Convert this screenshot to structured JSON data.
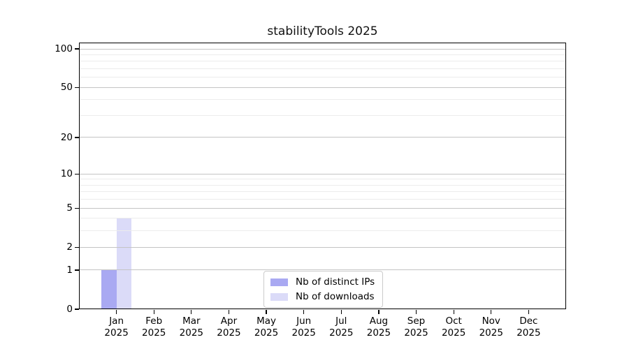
{
  "title": "stabilityTools 2025",
  "colors": {
    "distinct_ips_bar": "#a9a9f2",
    "downloads_bar": "#dbdbf8",
    "major_gridline": "#c4c4c4",
    "minor_gridline": "#ececec",
    "axis": "#000000",
    "legend_border": "#cbcbcb",
    "background": "#ffffff"
  },
  "chart_data": {
    "type": "bar",
    "title": "stabilityTools 2025",
    "yscale": "log1p",
    "grid": true,
    "categories": [
      "Jan",
      "Feb",
      "Mar",
      "Apr",
      "May",
      "Jun",
      "Jul",
      "Aug",
      "Sep",
      "Oct",
      "Nov",
      "Dec"
    ],
    "x_tick_year": "2025",
    "series": [
      {
        "name": "Nb of distinct IPs",
        "color": "#a9a9f2",
        "values": [
          1,
          0,
          0,
          0,
          0,
          0,
          0,
          0,
          0,
          0,
          0,
          0
        ]
      },
      {
        "name": "Nb of downloads",
        "color": "#dbdbf8",
        "values": [
          4,
          0,
          0,
          0,
          0,
          0,
          0,
          0,
          0,
          0,
          0,
          0
        ]
      }
    ],
    "y_major_ticks": [
      0,
      1,
      2,
      5,
      10,
      20,
      50,
      100
    ],
    "y_tick_labels": [
      "0",
      "1",
      "2",
      "5",
      "10",
      "20",
      "50",
      "100"
    ],
    "y_minor_gridlines": [
      3,
      4,
      6,
      7,
      8,
      9,
      30,
      40,
      60,
      70,
      80,
      90
    ],
    "ylim": [
      0,
      112
    ],
    "legend_position": "bottom-center",
    "legend_labels": [
      "Nb of distinct IPs",
      "Nb of downloads"
    ]
  }
}
